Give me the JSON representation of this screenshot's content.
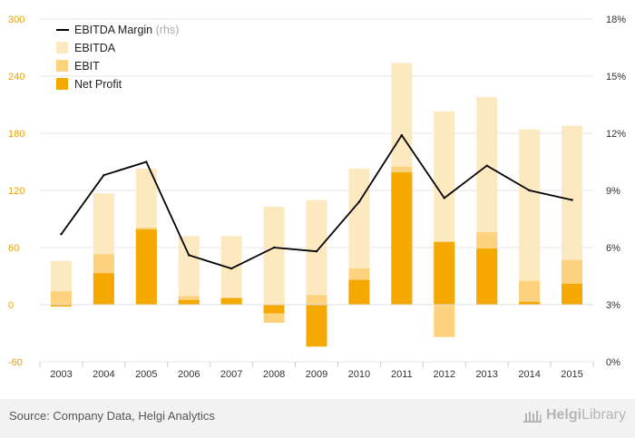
{
  "chart_data": {
    "type": "bar+line",
    "categories": [
      "2003",
      "2004",
      "2005",
      "2006",
      "2007",
      "2008",
      "2009",
      "2010",
      "2011",
      "2012",
      "2013",
      "2014",
      "2015"
    ],
    "series": [
      {
        "name": "EBITDA",
        "axis": "left",
        "kind": "bar",
        "color": "#fde9c0",
        "values": [
          46,
          117,
          143,
          72,
          72,
          103,
          110,
          143,
          254,
          203,
          218,
          184,
          188
        ]
      },
      {
        "name": "EBIT",
        "axis": "left",
        "kind": "bar",
        "color": "#fcd27e",
        "values": [
          14,
          53,
          81,
          9,
          7,
          -19,
          10,
          38,
          145,
          -34,
          76,
          25,
          47
        ]
      },
      {
        "name": "Net Profit",
        "axis": "left",
        "kind": "bar",
        "color": "#f5a800",
        "values": [
          -2,
          33,
          79,
          5,
          7,
          -9,
          -44,
          26,
          139,
          66,
          59,
          3,
          22
        ]
      },
      {
        "name": "EBITDA Margin",
        "axis": "right",
        "kind": "line",
        "color": "#000000",
        "values": [
          6.7,
          9.8,
          10.5,
          5.6,
          4.9,
          6.0,
          5.8,
          8.4,
          11.9,
          8.6,
          10.3,
          9.0,
          8.5
        ]
      }
    ],
    "y_left": {
      "min": -60,
      "max": 300,
      "ticks": [
        -60,
        0,
        60,
        120,
        180,
        240,
        300
      ]
    },
    "y_right": {
      "min": 0,
      "max": 18,
      "ticks": [
        "0%",
        "3%",
        "6%",
        "9%",
        "12%",
        "15%",
        "18%"
      ]
    },
    "legend": {
      "placement": "top-left",
      "items": [
        {
          "label": "EBITDA Margin",
          "sublabel": "(rhs)",
          "marker": "line",
          "color": "#000000"
        },
        {
          "label": "EBITDA",
          "marker": "box",
          "color": "#fde9c0"
        },
        {
          "label": "EBIT",
          "marker": "box",
          "color": "#fcd27e"
        },
        {
          "label": "Net Profit",
          "marker": "box",
          "color": "#f5a800"
        }
      ]
    },
    "grid": true
  },
  "footer": {
    "source": "Source: Company Data, Helgi Analytics",
    "brand_bold": "Helgi",
    "brand_light": "Library"
  },
  "colors": {
    "left_axis_text": "#e8a100",
    "grid": "#e6e6e6",
    "brand": "#b5b5b5"
  }
}
